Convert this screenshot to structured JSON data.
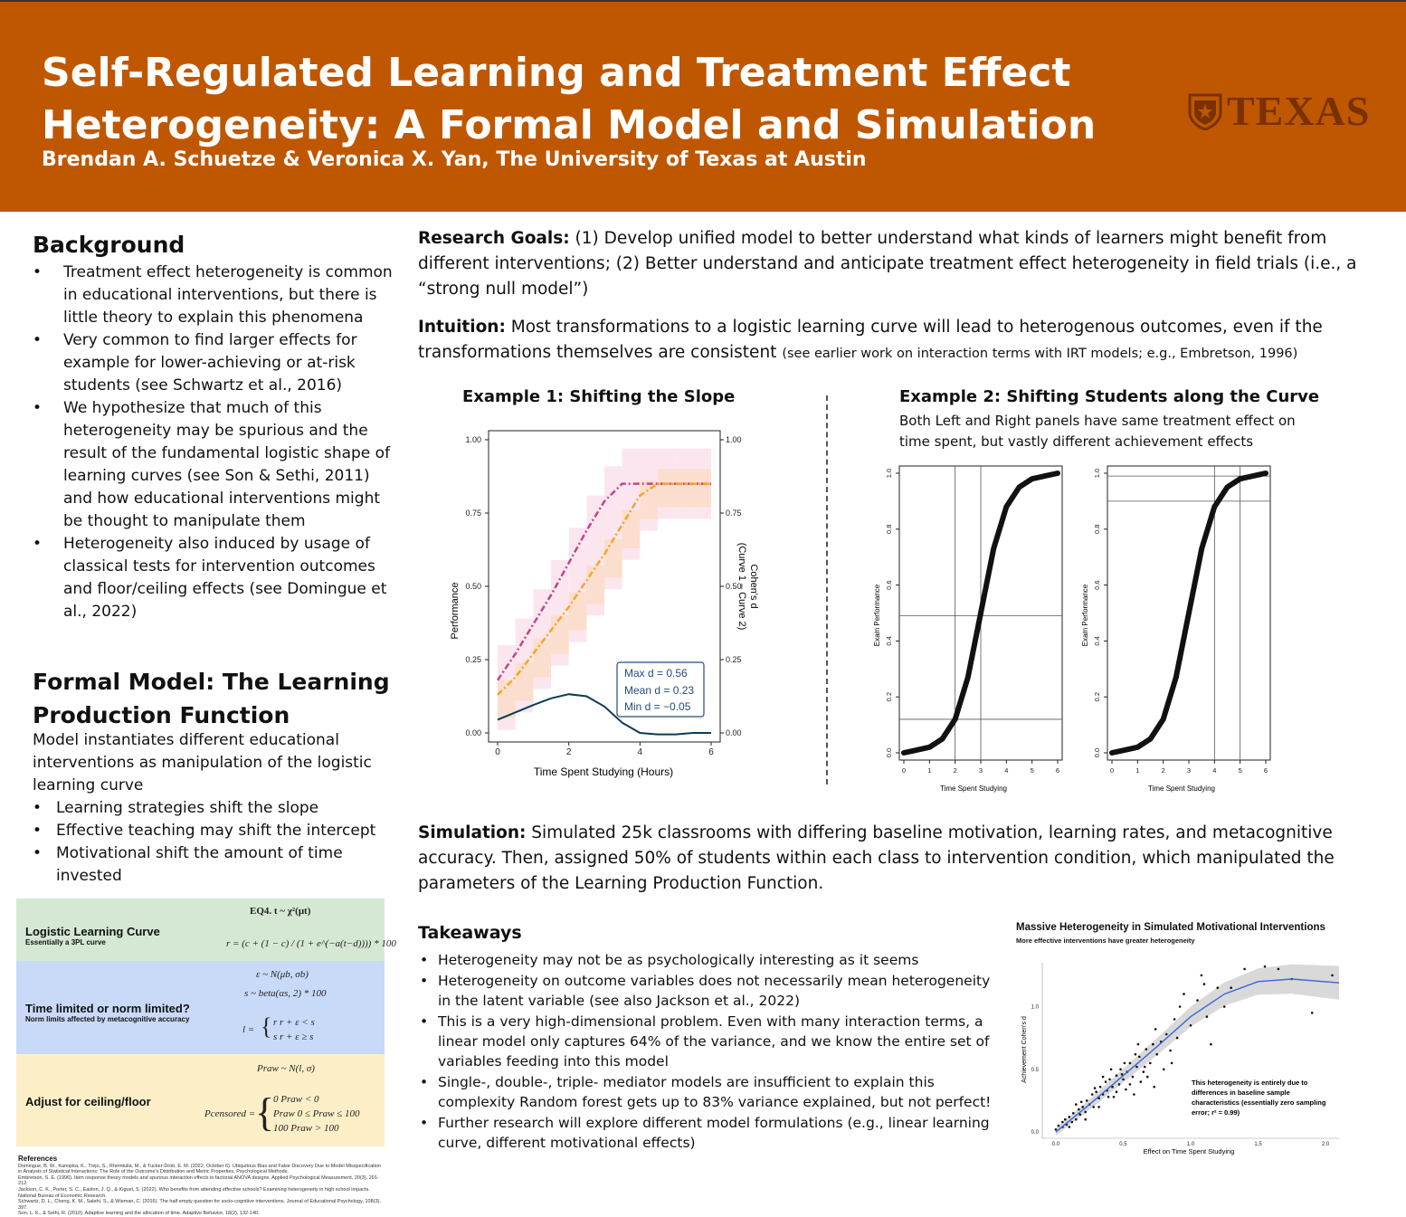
{
  "header": {
    "title_line1": "Self-Regulated Learning and Treatment Effect",
    "title_line2": "Heterogeneity: A Formal Model and Simulation",
    "authors": "Brendan A. Schuetze & Veronica X. Yan, The University of Texas at Austin",
    "logo_text": "TEXAS"
  },
  "background": {
    "heading": "Background",
    "bullets": [
      "Treatment effect heterogeneity is common in educational interventions, but there is little theory to explain this phenomena",
      "Very common to find larger effects for example for lower-achieving or at-risk students (see Schwartz et al., 2016)",
      "We hypothesize that much of this heterogeneity may be spurious and the result of the fundamental logistic shape of learning curves (see Son & Sethi, 2011) and how educational interventions might be thought to manipulate them",
      "Heterogeneity also induced by usage of classical tests for intervention outcomes and floor/ceiling effects (see Domingue et al., 2022)"
    ]
  },
  "formal_model": {
    "heading_line1": "Formal Model: The Learning",
    "heading_line2": "Production Function",
    "intro": "Model instantiates different educational interventions as manipulation of the logistic learning curve",
    "bullets": [
      "Learning strategies shift the slope",
      "Effective teaching may shift the intercept",
      "Motivational shift the amount of time invested"
    ],
    "boxes": {
      "box1_label": "Logistic Learning Curve",
      "box1_sub": "Essentially a 3PL curve",
      "box2_label": "Time limited or norm limited?",
      "box2_sub": "Norm limits affected by metacognitive accuracy",
      "box3_label": "Adjust for ceiling/floor",
      "eq4": "EQ4.  t ~ χ²(μt)",
      "eq_r": "r = (c + (1 − c) / (1 + e^(−a(t−d)))) * 100",
      "eq_eps": "ε ~ N(μb, σb)",
      "eq_s": "s ~ beta(αs, 2) * 100",
      "eq_l1": "r     r + ε < s",
      "eq_l2": "s     r + ε ≥ s",
      "eq_l_lhs": "l =",
      "eq_praw": "Praw ~ N(l, σ)",
      "eq_pc_lhs": "Pcensored =",
      "eq_pc1": "0        Praw < 0",
      "eq_pc2": "Praw    0 ≤ Praw ≤ 100",
      "eq_pc3": "100     Praw > 100"
    }
  },
  "references": {
    "title": "References",
    "lines": [
      "Domingue, B. W., Kanopka, K., Trejo, S., Rhemtulla, M., & Tucker-Drob, E. M. (2022, October 6). Ubiquitous Bias and False Discovery Due to Model Misspecification in Analysis of Statistical Interactions: The Role of the Outcome's Distribution and Metric Properties. Psychological Methods.",
      "Embretson, S. E. (1996). Item response theory models and spurious interaction effects in factorial ANOVA designs. Applied Psychological Measurement, 20(3), 201-212.",
      "Jackson, C. K., Porter, S. C., Easton, J. Q., & Kiguel, S. (2022). Who benefits from attending effective schools? Examining heterogeneity in high school impacts. National Bureau of Economic Research.",
      "Schwartz, D. L., Cheng, K. M., Salehi, S., & Wieman, C. (2016). The half empty question for socio-cognitive interventions. Journal of Educational Psychology, 108(3), 397.",
      "Son, L. K., & Sethi, R. (2010). Adaptive learning and the allocation of time. Adaptive Behavior, 18(2), 132-140."
    ]
  },
  "research_goals": {
    "label": "Research Goals:",
    "text": " (1) Develop unified model to better understand what kinds of learners might benefit from different interventions; (2) Better understand and anticipate treatment effect heterogeneity in field trials (i.e., a “strong null model”)"
  },
  "intuition": {
    "label": "Intuition:",
    "text": " Most transformations to a logistic learning curve will lead to heterogenous outcomes, even if the transformations themselves are consistent ",
    "note": "(see earlier work on interaction terms with IRT models; e.g., Embretson, 1996)"
  },
  "example1": {
    "title": "Example 1: Shifting the Slope",
    "ylabel": "Performance",
    "y2label_line1": "Cohen's d",
    "y2label_line2": "(Curve 1 – Curve 2)",
    "xlabel": "Time Spent Studying (Hours)",
    "legend": [
      "Max d = 0.56",
      "Mean d = 0.23",
      "Min d = −0.05"
    ]
  },
  "example2": {
    "title": "Example 2: Shifting Students along the Curve",
    "subtitle_line1": "Both Left and Right panels have same treatment effect on",
    "subtitle_line2": "time spent, but vastly different achievement effects",
    "ylabel": "Exam Performance",
    "xlabel": "Time Spent Studying"
  },
  "simulation": {
    "label": "Simulation:",
    "text": " Simulated 25k classrooms with differing baseline motivation, learning rates, and metacognitive accuracy. Then, assigned 50% of students within each class to intervention condition, which manipulated the parameters of the Learning Production Function."
  },
  "takeaways": {
    "heading": "Takeaways",
    "bullets": [
      "Heterogeneity may not be as psychologically interesting as it seems",
      "Heterogeneity on outcome variables does not necessarily mean heterogeneity in the latent variable (see also Jackson et al., 2022)",
      "This is a very high-dimensional problem. Even with many interaction terms, a linear model only captures 64% of the variance, and we know the entire set of variables feeding into this model",
      "Single-, double-, triple- mediator models are insufficient to explain this complexity Random forest gets up to 83% variance explained, but not perfect!",
      "Further research will explore different model formulations (e.g., linear learning curve, different motivational effects)"
    ]
  },
  "scatter": {
    "title": "Massive Heterogeneity in Simulated Motivational Interventions",
    "subtitle": "More effective interventions have greater heterogeneity",
    "ylabel": "Achievement Cohen's d",
    "xlabel": "Effect on Time Spent Studying",
    "annotation_lines": [
      "This heterogeneity is entirely due to",
      "differences in baseline sample",
      "characteristics (essentially zero sampling",
      "error; r² = 0.99)"
    ]
  },
  "colors": {
    "burnt_orange": "#bf5700",
    "box_green": "#d5e8d4",
    "box_blue": "#c9daf8",
    "box_yellow": "#fcefc7",
    "legend_text": "#1f4e79"
  },
  "chart_data": [
    {
      "type": "line",
      "id": "example1",
      "x": [
        0,
        0.5,
        1,
        1.5,
        2,
        2.5,
        3,
        3.5,
        4,
        4.5,
        5,
        5.5,
        6
      ],
      "series": [
        {
          "values": [
            0.18,
            0.27,
            0.37,
            0.47,
            0.58,
            0.69,
            0.79,
            0.85,
            0.85,
            0.85,
            0.85,
            0.85,
            0.85
          ]
        },
        {
          "values": [
            0.13,
            0.19,
            0.27,
            0.35,
            0.43,
            0.52,
            0.61,
            0.71,
            0.81,
            0.85,
            0.85,
            0.85,
            0.85
          ]
        },
        {
          "values": [
            0.045,
            0.07,
            0.095,
            0.118,
            0.132,
            0.125,
            0.09,
            0.035,
            0.0,
            -0.005,
            -0.005,
            0.0,
            0.0
          ]
        }
      ],
      "xlim": [
        0,
        6
      ],
      "ylim": [
        0,
        1
      ],
      "xticks": [
        0,
        2,
        4,
        6
      ],
      "yticks": [
        "0.00",
        "0.25",
        "0.50",
        "0.75",
        "1.00"
      ],
      "colors": [
        "#c0458a",
        "#f5a623",
        "#0d3b52"
      ]
    },
    {
      "type": "line",
      "id": "example2-left",
      "x": [
        0,
        0.5,
        1,
        1.5,
        2,
        2.5,
        3,
        3.5,
        4,
        4.5,
        5,
        5.5,
        6
      ],
      "values": [
        0.0,
        0.01,
        0.02,
        0.05,
        0.12,
        0.27,
        0.5,
        0.73,
        0.88,
        0.95,
        0.98,
        0.99,
        1.0
      ],
      "xlim": [
        0,
        6
      ],
      "ylim": [
        0,
        1
      ],
      "xticks": [
        "0",
        "1",
        "2",
        "3",
        "4",
        "5",
        "6"
      ],
      "yticks": [
        "0.0",
        "0.2",
        "0.4",
        "0.6",
        "0.8",
        "1.0"
      ],
      "reference_lines": {
        "v": [
          2,
          3
        ],
        "h": [
          0.12,
          0.49
        ]
      }
    },
    {
      "type": "line",
      "id": "example2-right",
      "x": [
        0,
        0.5,
        1,
        1.5,
        2,
        2.5,
        3,
        3.5,
        4,
        4.5,
        5,
        5.5,
        6
      ],
      "values": [
        0.0,
        0.01,
        0.02,
        0.05,
        0.12,
        0.27,
        0.5,
        0.73,
        0.88,
        0.95,
        0.98,
        0.99,
        1.0
      ],
      "xlim": [
        0,
        6
      ],
      "ylim": [
        0,
        1
      ],
      "xticks": [
        "0",
        "1",
        "2",
        "3",
        "4",
        "5",
        "6"
      ],
      "yticks": [
        "0.0",
        "0.2",
        "0.4",
        "0.6",
        "0.8",
        "1.0"
      ],
      "reference_lines": {
        "v": [
          4,
          5
        ],
        "h": [
          0.9,
          0.99
        ]
      }
    },
    {
      "type": "scatter",
      "id": "massive-heterogeneity",
      "xlim": [
        -0.1,
        2.1
      ],
      "ylim": [
        -0.05,
        1.35
      ],
      "xticks": [
        "0.0",
        "0.5",
        "1.0",
        "1.5",
        "2.0"
      ],
      "yticks": [
        "0.0",
        "0.5",
        "1.0"
      ],
      "points": [
        [
          0.0,
          0.02
        ],
        [
          0.02,
          0.05
        ],
        [
          0.05,
          0.04
        ],
        [
          0.07,
          0.1
        ],
        [
          0.08,
          0.06
        ],
        [
          0.1,
          0.12
        ],
        [
          0.12,
          0.08
        ],
        [
          0.13,
          0.15
        ],
        [
          0.15,
          0.1
        ],
        [
          0.17,
          0.18
        ],
        [
          0.18,
          0.14
        ],
        [
          0.2,
          0.2
        ],
        [
          0.22,
          0.16
        ],
        [
          0.23,
          0.25
        ],
        [
          0.25,
          0.22
        ],
        [
          0.27,
          0.3
        ],
        [
          0.28,
          0.2
        ],
        [
          0.3,
          0.32
        ],
        [
          0.32,
          0.27
        ],
        [
          0.33,
          0.36
        ],
        [
          0.35,
          0.3
        ],
        [
          0.37,
          0.4
        ],
        [
          0.38,
          0.33
        ],
        [
          0.4,
          0.42
        ],
        [
          0.42,
          0.36
        ],
        [
          0.43,
          0.28
        ],
        [
          0.45,
          0.45
        ],
        [
          0.47,
          0.38
        ],
        [
          0.48,
          0.5
        ],
        [
          0.5,
          0.42
        ],
        [
          0.52,
          0.34
        ],
        [
          0.53,
          0.48
        ],
        [
          0.55,
          0.55
        ],
        [
          0.57,
          0.44
        ],
        [
          0.58,
          0.3
        ],
        [
          0.6,
          0.52
        ],
        [
          0.62,
          0.6
        ],
        [
          0.63,
          0.4
        ],
        [
          0.65,
          0.48
        ],
        [
          0.67,
          0.66
        ],
        [
          0.7,
          0.55
        ],
        [
          0.72,
          0.7
        ],
        [
          0.73,
          0.36
        ],
        [
          0.75,
          0.62
        ],
        [
          0.78,
          0.72
        ],
        [
          0.8,
          0.5
        ],
        [
          0.82,
          0.78
        ],
        [
          0.85,
          0.65
        ],
        [
          0.88,
          0.9
        ],
        [
          0.9,
          0.75
        ],
        [
          0.95,
          1.1
        ],
        [
          1.0,
          0.85
        ],
        [
          1.05,
          1.05
        ],
        [
          1.08,
          1.25
        ],
        [
          1.1,
          1.18
        ],
        [
          1.12,
          0.92
        ],
        [
          1.15,
          0.7
        ],
        [
          1.2,
          1.15
        ],
        [
          1.25,
          1.0
        ],
        [
          1.3,
          1.15
        ],
        [
          1.4,
          1.3
        ],
        [
          1.55,
          1.32
        ],
        [
          1.65,
          1.3
        ],
        [
          1.75,
          1.22
        ],
        [
          1.9,
          0.95
        ],
        [
          2.05,
          1.25
        ],
        [
          0.15,
          0.22
        ],
        [
          0.22,
          0.1
        ],
        [
          0.32,
          0.2
        ],
        [
          0.41,
          0.5
        ],
        [
          0.51,
          0.55
        ],
        [
          0.59,
          0.62
        ],
        [
          0.66,
          0.52
        ],
        [
          0.74,
          0.82
        ],
        [
          0.86,
          0.55
        ],
        [
          0.92,
          1.0
        ],
        [
          0.35,
          0.44
        ],
        [
          0.45,
          0.32
        ],
        [
          0.55,
          0.38
        ],
        [
          0.68,
          0.44
        ],
        [
          0.05,
          0.08
        ],
        [
          0.1,
          0.04
        ],
        [
          0.19,
          0.24
        ],
        [
          0.29,
          0.35
        ],
        [
          0.39,
          0.28
        ],
        [
          0.49,
          0.46
        ],
        [
          0.61,
          0.7
        ]
      ],
      "trend": [
        [
          0.0,
          0.0
        ],
        [
          0.25,
          0.22
        ],
        [
          0.5,
          0.45
        ],
        [
          0.75,
          0.68
        ],
        [
          1.0,
          0.92
        ],
        [
          1.25,
          1.1
        ],
        [
          1.5,
          1.2
        ],
        [
          1.75,
          1.22
        ],
        [
          2.1,
          1.19
        ]
      ]
    }
  ]
}
